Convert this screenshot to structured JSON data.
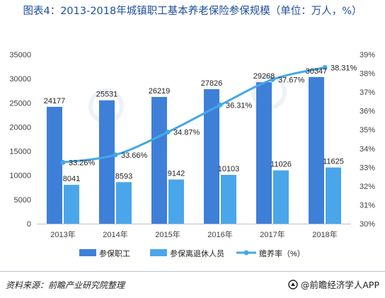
{
  "title": "图表4：2013-2018年城镇职工基本养老保险参保规模（单位：万人，%）",
  "source": "资料来源：前瞻产业研究院整理",
  "brand": "@前瞻经济学人APP",
  "colors": {
    "bar_primary": "#3e7fd8",
    "bar_secondary": "#4aa6ea",
    "line": "#45a8e8",
    "axis_text": "#404040",
    "grid": "#d9d9d9",
    "title": "#1f4f9c"
  },
  "chart_data": {
    "type": "bar",
    "categories": [
      "2013年",
      "2014年",
      "2015年",
      "2016年",
      "2017年",
      "2018年"
    ],
    "series": [
      {
        "name": "参保职工",
        "type": "bar",
        "axis": "left",
        "values": [
          24177,
          25531,
          26219,
          27826,
          29268,
          30347
        ]
      },
      {
        "name": "参保离退休人员",
        "type": "bar",
        "axis": "left",
        "values": [
          8041,
          8593,
          9142,
          10103,
          11026,
          11625
        ]
      },
      {
        "name": "赡养率（%）",
        "type": "line",
        "axis": "right",
        "values": [
          33.26,
          33.66,
          34.87,
          36.31,
          37.67,
          38.31
        ],
        "labels": [
          "33.26%",
          "33.66%",
          "34.87%",
          "36.31%",
          "37.67%",
          "38.31%"
        ]
      }
    ],
    "left_axis": {
      "ylim": [
        0,
        35000
      ],
      "ticks": [
        "0",
        "5000",
        "10000",
        "15000",
        "20000",
        "25000",
        "30000",
        "35000"
      ]
    },
    "right_axis": {
      "ylim": [
        30,
        39
      ],
      "ticks": [
        "30%",
        "31%",
        "32%",
        "33%",
        "34%",
        "35%",
        "36%",
        "37%",
        "38%",
        "39%"
      ]
    },
    "grid": false,
    "legend": "bottom"
  }
}
